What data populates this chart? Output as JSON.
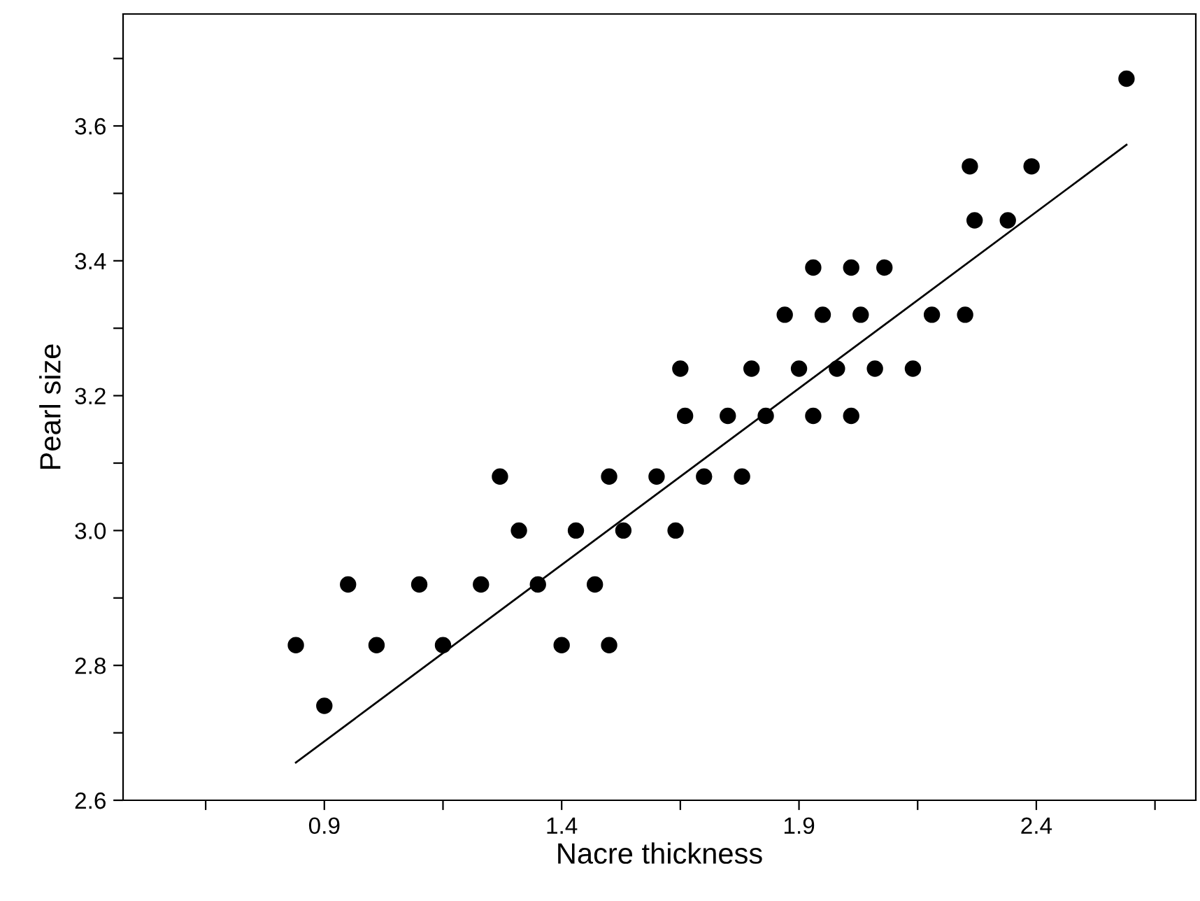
{
  "chart_data": {
    "type": "scatter",
    "xlabel": "Nacre thickness",
    "ylabel": "Pearl size",
    "xlim": [
      0.476,
      2.736
    ],
    "ylim": [
      2.6,
      3.766
    ],
    "xticks": [
      {
        "value": 0.65,
        "label": null
      },
      0.9,
      {
        "value": 1.15,
        "label": null
      },
      1.4,
      {
        "value": 1.65,
        "label": null
      },
      1.9,
      {
        "value": 2.15,
        "label": null
      },
      2.4,
      {
        "value": 2.65,
        "label": null
      }
    ],
    "yticks": [
      {
        "value": 2.6,
        "label": "2.6"
      },
      {
        "value": 2.7,
        "label": null
      },
      {
        "value": 2.8,
        "label": "2.8"
      },
      {
        "value": 2.9,
        "label": null
      },
      {
        "value": 3.0,
        "label": "3.0"
      },
      {
        "value": 3.1,
        "label": null
      },
      {
        "value": 3.2,
        "label": "3.2"
      },
      {
        "value": 3.3,
        "label": null
      },
      {
        "value": 3.4,
        "label": "3.4"
      },
      {
        "value": 3.5,
        "label": null
      },
      {
        "value": 3.6,
        "label": "3.6"
      },
      {
        "value": 3.7,
        "label": null
      }
    ],
    "grid": false,
    "legend": false,
    "marker": "circle",
    "series": [
      {
        "color": "#000000",
        "x": [
          0.84,
          0.9,
          0.95,
          1.01,
          1.1,
          1.15,
          1.23,
          1.27,
          1.31,
          1.35,
          1.4,
          1.43,
          1.47,
          1.5,
          1.5,
          1.53,
          1.6,
          1.64,
          1.65,
          1.66,
          1.7,
          1.75,
          1.78,
          1.8,
          1.83,
          1.87,
          1.9,
          1.93,
          1.93,
          1.95,
          1.98,
          2.01,
          2.01,
          2.03,
          2.06,
          2.08,
          2.14,
          2.18,
          2.25,
          2.26,
          2.27,
          2.34,
          2.39,
          2.59
        ],
        "values": [
          2.83,
          2.74,
          2.92,
          2.83,
          2.92,
          2.83,
          2.92,
          3.08,
          3.0,
          2.92,
          2.83,
          3.0,
          2.92,
          3.08,
          2.83,
          3.0,
          3.08,
          3.0,
          3.24,
          3.17,
          3.08,
          3.17,
          3.08,
          3.24,
          3.17,
          3.32,
          3.24,
          3.39,
          3.17,
          3.32,
          3.24,
          3.39,
          3.17,
          3.32,
          3.24,
          3.39,
          3.24,
          3.32,
          3.32,
          3.54,
          3.46,
          3.46,
          3.54,
          3.67
        ]
      },
      {
        "type": "line",
        "color": "#000000",
        "marker": "none",
        "x": [
          0.84,
          2.59
        ],
        "values": [
          2.656,
          3.572
        ]
      }
    ]
  }
}
